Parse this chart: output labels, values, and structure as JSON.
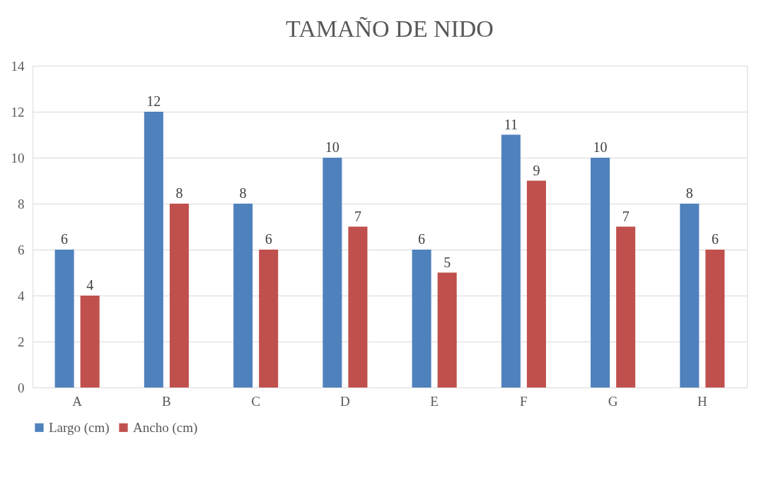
{
  "chart_data": {
    "type": "bar",
    "title": "TAMAÑO DE NIDO",
    "categories": [
      "A",
      "B",
      "C",
      "D",
      "E",
      "F",
      "G",
      "H"
    ],
    "series": [
      {
        "name": "Largo (cm)",
        "color": "#4f81bd",
        "values": [
          6,
          12,
          8,
          10,
          6,
          11,
          10,
          8
        ]
      },
      {
        "name": "Ancho (cm)",
        "color": "#c0504d",
        "values": [
          4,
          8,
          6,
          7,
          5,
          9,
          7,
          6
        ]
      }
    ],
    "ylim": [
      0,
      14
    ],
    "yticks": [
      0,
      2,
      4,
      6,
      8,
      10,
      12,
      14
    ],
    "grid": "y",
    "legend": "bottom",
    "data_labels": true
  }
}
